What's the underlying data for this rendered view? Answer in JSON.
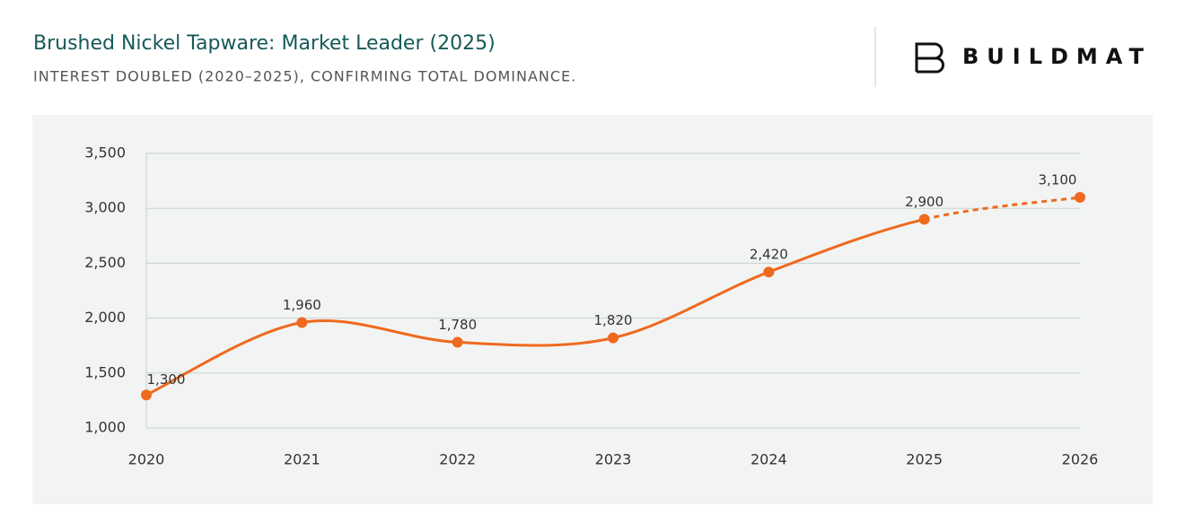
{
  "brand": "BUILDMAT",
  "chart_data": {
    "type": "line",
    "title": "Brushed Nickel Tapware: Market Leader (2025)",
    "subtitle": "INTEREST DOUBLED (2020–2025), CONFIRMING TOTAL DOMINANCE.",
    "x": [
      2020,
      2021,
      2022,
      2023,
      2024,
      2025,
      2026
    ],
    "xlim": [
      2020,
      2026
    ],
    "xticks": [
      2020,
      2021,
      2022,
      2023,
      2024,
      2025,
      2026
    ],
    "values": [
      1300,
      1960,
      1780,
      1820,
      2420,
      2900,
      3100
    ],
    "value_labels": [
      "1,300",
      "1,960",
      "1,780",
      "1,820",
      "2,420",
      "2,900",
      "3,100"
    ],
    "forecast_from": 2025,
    "color": "#ef6a1e",
    "ylim": [
      1000,
      3500
    ],
    "yticks": [
      {
        "value": 1000,
        "label": "1,000"
      },
      {
        "value": 1500,
        "label": "1,500"
      },
      {
        "value": 2000,
        "label": "2,000"
      },
      {
        "value": 2500,
        "label": "2,500"
      },
      {
        "value": 3000,
        "label": "3,000"
      },
      {
        "value": 3500,
        "label": "3,500"
      }
    ],
    "grid": true
  }
}
